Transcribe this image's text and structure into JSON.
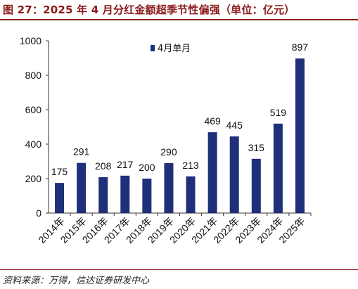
{
  "figure": {
    "title": "图 27：2025 年 4 月分红金额超季节性偏强（单位：亿元）",
    "source": "资料来源：万得，信达证券研发中心"
  },
  "chart_data": {
    "type": "bar",
    "categories": [
      "2014年",
      "2015年",
      "2016年",
      "2017年",
      "2018年",
      "2019年",
      "2020年",
      "2021年",
      "2022年",
      "2023年",
      "2024年",
      "2025年"
    ],
    "series": [
      {
        "name": "4月单月",
        "values": [
          175,
          291,
          208,
          217,
          200,
          290,
          213,
          469,
          445,
          315,
          519,
          897
        ]
      }
    ],
    "ylim": [
      0,
      1000
    ],
    "yticks": [
      0,
      200,
      400,
      600,
      800,
      1000
    ],
    "grid": false,
    "legend_position": "top-center",
    "bar_color": "#1f2f7a"
  }
}
